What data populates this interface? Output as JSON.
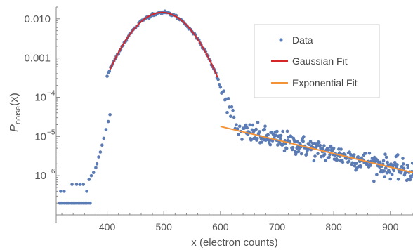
{
  "chart_data": {
    "type": "scatter",
    "xlabel": "x (electron counts)",
    "ylabel": {
      "main": "P",
      "sub": "noise",
      "arg": "(x)"
    },
    "xlim": [
      310,
      940
    ],
    "ylim": [
      1e-07,
      0.02
    ],
    "y_scale": "log",
    "x_ticks": [
      400,
      500,
      600,
      700,
      800,
      900
    ],
    "x_tick_labels": [
      "400",
      "500",
      "600",
      "700",
      "800",
      "900"
    ],
    "y_ticks": [
      {
        "value": 0.01,
        "label": "0.010",
        "sup": ""
      },
      {
        "value": 0.001,
        "label": "0.001",
        "sup": ""
      },
      {
        "value": 0.0001,
        "label": "10",
        "sup": "−4"
      },
      {
        "value": 1e-05,
        "label": "10",
        "sup": "−5"
      },
      {
        "value": 1e-06,
        "label": "10",
        "sup": "−6"
      }
    ],
    "grid": false,
    "legend_position": "top-right",
    "colors": {
      "data": "#5b7bb4",
      "gaussian": "#d62728",
      "exponential": "#f39237",
      "axis": "#888888",
      "legend_border": "#cccccc"
    },
    "series": [
      {
        "name": "Data",
        "kind": "points",
        "low_plateau": {
          "x_start": 316,
          "x_end": 370,
          "step": 3,
          "value": 2e-07
        },
        "low_bumps": [
          {
            "x": 318,
            "y": 4e-07
          },
          {
            "x": 324,
            "y": 4e-07
          },
          {
            "x": 338,
            "y": 6e-07
          },
          {
            "x": 346,
            "y": 6e-07
          },
          {
            "x": 352,
            "y": 6e-07
          },
          {
            "x": 358,
            "y": 6e-07
          },
          {
            "x": 364,
            "y": 4e-07
          },
          {
            "x": 368,
            "y": 8e-07
          },
          {
            "x": 372,
            "y": 1e-06
          },
          {
            "x": 376,
            "y": 1.2e-06
          },
          {
            "x": 380,
            "y": 1.6e-06
          },
          {
            "x": 382,
            "y": 2e-06
          },
          {
            "x": 385,
            "y": 3e-06
          },
          {
            "x": 388,
            "y": 4e-06
          },
          {
            "x": 391,
            "y": 6e-06
          },
          {
            "x": 394,
            "y": 9e-06
          },
          {
            "x": 398,
            "y": 1.5e-05
          },
          {
            "x": 402,
            "y": 2.4e-05
          },
          {
            "x": 405,
            "y": 3.6e-05
          }
        ],
        "gaussian_region": {
          "x_start": 400,
          "x_end": 596,
          "step": 2
        },
        "tail_region": {
          "x_start": 598,
          "x_end": 940,
          "step": 2,
          "spread_decades": 0.22
        }
      },
      {
        "name": "Gaussian Fit",
        "kind": "line",
        "amplitude": 0.0145,
        "mu": 497,
        "sigma": 35.5,
        "x_range": [
          405,
          595
        ]
      },
      {
        "name": "Exponential Fit",
        "kind": "line",
        "points": [
          {
            "x": 600,
            "y": 1.8e-05
          },
          {
            "x": 940,
            "y": 1.2e-06
          }
        ]
      }
    ]
  }
}
